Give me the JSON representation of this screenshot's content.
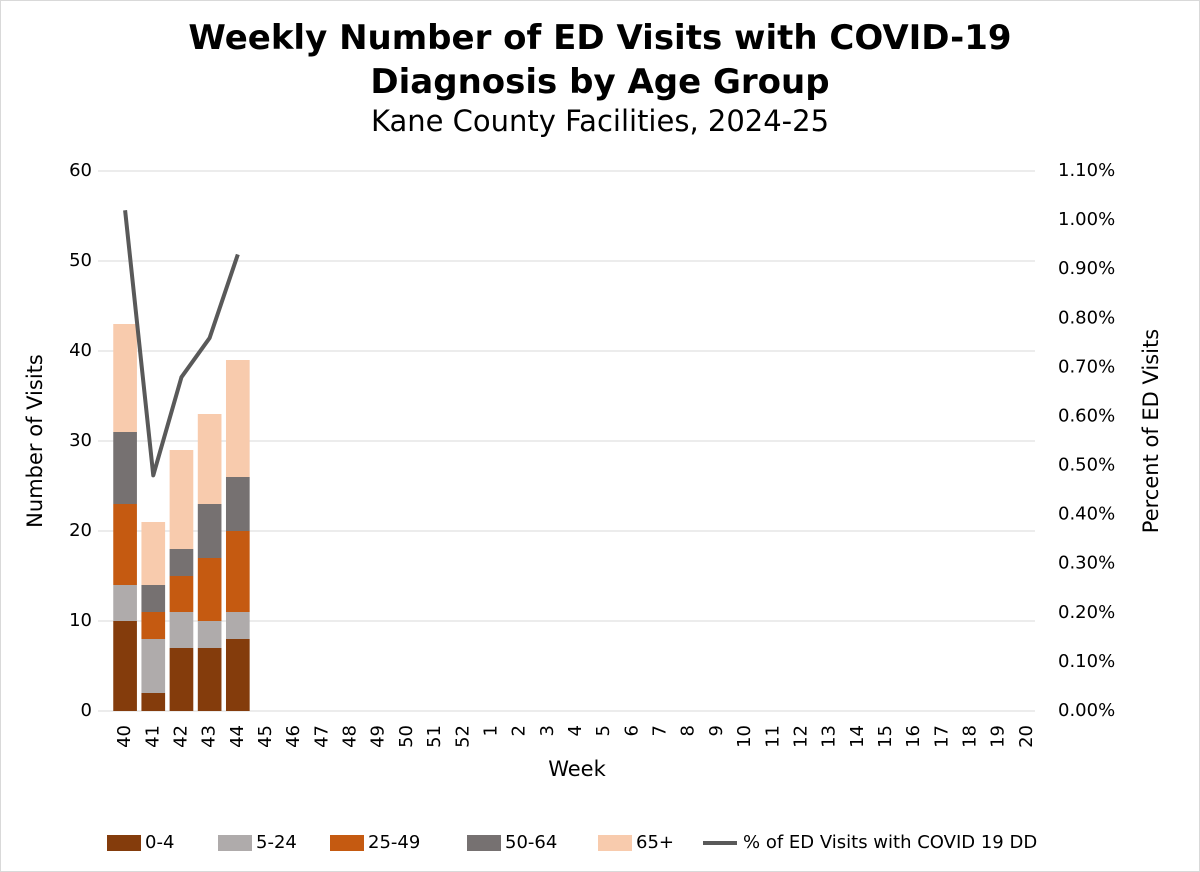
{
  "chart_data": {
    "type": "bar",
    "stacked": true,
    "title": "Weekly Number of ED Visits with COVID-19 Diagnosis by Age Group",
    "subtitle": "Kane County Facilities, 2024-25",
    "x_label": "Week",
    "y_label": "Number of Visits",
    "y2_label": "Percent of ED Visits",
    "categories": [
      "40",
      "41",
      "42",
      "43",
      "44",
      "45",
      "46",
      "47",
      "48",
      "49",
      "50",
      "51",
      "52",
      "1",
      "2",
      "3",
      "4",
      "5",
      "6",
      "7",
      "8",
      "9",
      "10",
      "11",
      "12",
      "13",
      "14",
      "15",
      "16",
      "17",
      "18",
      "19",
      "20"
    ],
    "series": [
      {
        "name": "0-4",
        "color": "#843c0c",
        "values": [
          10,
          2,
          7,
          7,
          8,
          null,
          null,
          null,
          null,
          null,
          null,
          null,
          null,
          null,
          null,
          null,
          null,
          null,
          null,
          null,
          null,
          null,
          null,
          null,
          null,
          null,
          null,
          null,
          null,
          null,
          null,
          null,
          null
        ]
      },
      {
        "name": "5-24",
        "color": "#afabab",
        "values": [
          4,
          6,
          4,
          3,
          3,
          null,
          null,
          null,
          null,
          null,
          null,
          null,
          null,
          null,
          null,
          null,
          null,
          null,
          null,
          null,
          null,
          null,
          null,
          null,
          null,
          null,
          null,
          null,
          null,
          null,
          null,
          null,
          null
        ]
      },
      {
        "name": "25-49",
        "color": "#c55a11",
        "values": [
          9,
          3,
          4,
          7,
          9,
          null,
          null,
          null,
          null,
          null,
          null,
          null,
          null,
          null,
          null,
          null,
          null,
          null,
          null,
          null,
          null,
          null,
          null,
          null,
          null,
          null,
          null,
          null,
          null,
          null,
          null,
          null,
          null
        ]
      },
      {
        "name": "50-64",
        "color": "#767171",
        "values": [
          8,
          3,
          3,
          6,
          6,
          null,
          null,
          null,
          null,
          null,
          null,
          null,
          null,
          null,
          null,
          null,
          null,
          null,
          null,
          null,
          null,
          null,
          null,
          null,
          null,
          null,
          null,
          null,
          null,
          null,
          null,
          null,
          null
        ]
      },
      {
        "name": "65+",
        "color": "#f8cbad",
        "values": [
          12,
          7,
          11,
          10,
          13,
          null,
          null,
          null,
          null,
          null,
          null,
          null,
          null,
          null,
          null,
          null,
          null,
          null,
          null,
          null,
          null,
          null,
          null,
          null,
          null,
          null,
          null,
          null,
          null,
          null,
          null,
          null,
          null
        ]
      },
      {
        "name": "% of ED Visits with COVID 19 DD",
        "color": "#595959",
        "type": "line",
        "axis": "y2",
        "values": [
          1.02,
          0.48,
          0.68,
          0.76,
          0.93,
          null,
          null,
          null,
          null,
          null,
          null,
          null,
          null,
          null,
          null,
          null,
          null,
          null,
          null,
          null,
          null,
          null,
          null,
          null,
          null,
          null,
          null,
          null,
          null,
          null,
          null,
          null,
          null
        ]
      }
    ],
    "ylim": [
      0,
      60
    ],
    "yticks": [
      0,
      10,
      20,
      30,
      40,
      50,
      60
    ],
    "y2lim": [
      0,
      1.1
    ],
    "y2ticks": [
      {
        "value": 0,
        "label": "0.00%"
      },
      {
        "value": 0.1,
        "label": "0.10%"
      },
      {
        "value": 0.2,
        "label": "0.20%"
      },
      {
        "value": 0.3,
        "label": "0.30%"
      },
      {
        "value": 0.4,
        "label": "0.40%"
      },
      {
        "value": 0.5,
        "label": "0.50%"
      },
      {
        "value": 0.6,
        "label": "0.60%"
      },
      {
        "value": 0.7,
        "label": "0.70%"
      },
      {
        "value": 0.8,
        "label": "0.80%"
      },
      {
        "value": 0.9,
        "label": "0.90%"
      },
      {
        "value": 1.0,
        "label": "1.00%"
      },
      {
        "value": 1.1,
        "label": "1.10%"
      }
    ],
    "grid": true,
    "legend": "bottom"
  }
}
